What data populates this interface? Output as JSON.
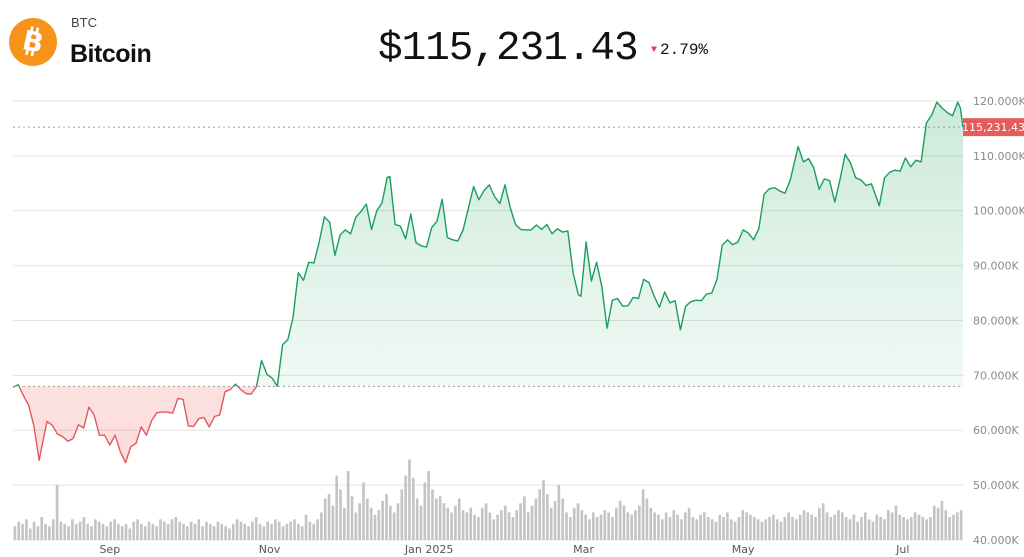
{
  "asset": {
    "ticker": "BTC",
    "name": "Bitcoin",
    "logo_icon": "bitcoin-icon",
    "logo_color": "#f7931a"
  },
  "quote": {
    "price": "$115,231.43",
    "change_direction": "down",
    "change_percent": "2.79%",
    "down_color": "#e0405a"
  },
  "colors": {
    "up_line": "#1a9e5c",
    "down_line": "#e05a5a",
    "up_fill": "#1a9e5c",
    "down_fill": "#f07070",
    "volume": "#c4c4c4",
    "grid": "#e3e3e3",
    "last_price_badge": "#e65c5c"
  },
  "chart_data": {
    "type": "area",
    "title": "",
    "xlabel": "",
    "ylabel": "",
    "ylim": [
      40000,
      122000
    ],
    "y_ticks": [
      {
        "value": 120000,
        "label": "120.000K"
      },
      {
        "value": 110000,
        "label": "110.000K"
      },
      {
        "value": 100000,
        "label": "100.000K"
      },
      {
        "value": 90000,
        "label": "90.000K"
      },
      {
        "value": 80000,
        "label": "80.000K"
      },
      {
        "value": 70000,
        "label": "70.000K"
      },
      {
        "value": 60000,
        "label": "60.000K"
      },
      {
        "value": 50000,
        "label": "50.000K"
      },
      {
        "value": 40000,
        "label": "40.000K"
      }
    ],
    "x_ticks": [
      {
        "date": "2024-09-01",
        "label": "Sep"
      },
      {
        "date": "2024-11-01",
        "label": "Nov"
      },
      {
        "date": "2025-01-01",
        "label": "Jan 2025"
      },
      {
        "date": "2025-03-01",
        "label": "Mar"
      },
      {
        "date": "2025-05-01",
        "label": "May"
      },
      {
        "date": "2025-07-01",
        "label": "Jul"
      }
    ],
    "x_range": [
      "2024-07-26",
      "2025-07-24"
    ],
    "baseline": 68000,
    "last_value": 115231.43,
    "last_value_label": "115,231.43",
    "grid": true,
    "series": [
      {
        "points": [
          [
            "2024-07-26",
            67800
          ],
          [
            "2024-07-28",
            68300
          ],
          [
            "2024-07-30",
            66300
          ],
          [
            "2024-08-01",
            64500
          ],
          [
            "2024-08-03",
            60800
          ],
          [
            "2024-08-05",
            54500
          ],
          [
            "2024-08-06",
            57000
          ],
          [
            "2024-08-08",
            61600
          ],
          [
            "2024-08-10",
            60900
          ],
          [
            "2024-08-12",
            59300
          ],
          [
            "2024-08-14",
            58800
          ],
          [
            "2024-08-16",
            58000
          ],
          [
            "2024-08-18",
            58500
          ],
          [
            "2024-08-20",
            61000
          ],
          [
            "2024-08-22",
            60400
          ],
          [
            "2024-08-24",
            64200
          ],
          [
            "2024-08-26",
            62800
          ],
          [
            "2024-08-28",
            59100
          ],
          [
            "2024-08-30",
            59100
          ],
          [
            "2024-09-01",
            57300
          ],
          [
            "2024-09-03",
            59100
          ],
          [
            "2024-09-05",
            56100
          ],
          [
            "2024-09-07",
            54100
          ],
          [
            "2024-09-09",
            57000
          ],
          [
            "2024-09-11",
            57600
          ],
          [
            "2024-09-13",
            60600
          ],
          [
            "2024-09-15",
            59100
          ],
          [
            "2024-09-17",
            61800
          ],
          [
            "2024-09-19",
            63200
          ],
          [
            "2024-09-21",
            63300
          ],
          [
            "2024-09-23",
            63300
          ],
          [
            "2024-09-25",
            63100
          ],
          [
            "2024-09-27",
            65800
          ],
          [
            "2024-09-29",
            65600
          ],
          [
            "2024-10-01",
            60800
          ],
          [
            "2024-10-03",
            60700
          ],
          [
            "2024-10-05",
            62100
          ],
          [
            "2024-10-07",
            62300
          ],
          [
            "2024-10-09",
            60600
          ],
          [
            "2024-10-11",
            62500
          ],
          [
            "2024-10-13",
            62800
          ],
          [
            "2024-10-15",
            67000
          ],
          [
            "2024-10-17",
            67400
          ],
          [
            "2024-10-19",
            68400
          ],
          [
            "2024-10-21",
            67400
          ],
          [
            "2024-10-23",
            66700
          ],
          [
            "2024-10-25",
            66600
          ],
          [
            "2024-10-27",
            67900
          ],
          [
            "2024-10-29",
            72700
          ],
          [
            "2024-10-31",
            70200
          ],
          [
            "2024-11-02",
            69500
          ],
          [
            "2024-11-04",
            68000
          ],
          [
            "2024-11-06",
            75600
          ],
          [
            "2024-11-08",
            76500
          ],
          [
            "2024-11-10",
            80500
          ],
          [
            "2024-11-12",
            88700
          ],
          [
            "2024-11-14",
            87300
          ],
          [
            "2024-11-16",
            90600
          ],
          [
            "2024-11-18",
            90500
          ],
          [
            "2024-11-20",
            94300
          ],
          [
            "2024-11-22",
            98900
          ],
          [
            "2024-11-24",
            97900
          ],
          [
            "2024-11-26",
            91900
          ],
          [
            "2024-11-28",
            95600
          ],
          [
            "2024-11-30",
            96500
          ],
          [
            "2024-12-02",
            95800
          ],
          [
            "2024-12-04",
            98800
          ],
          [
            "2024-12-06",
            99900
          ],
          [
            "2024-12-08",
            101200
          ],
          [
            "2024-12-10",
            96600
          ],
          [
            "2024-12-12",
            100000
          ],
          [
            "2024-12-14",
            101400
          ],
          [
            "2024-12-16",
            106100
          ],
          [
            "2024-12-17",
            106200
          ],
          [
            "2024-12-19",
            97500
          ],
          [
            "2024-12-21",
            97200
          ],
          [
            "2024-12-23",
            94900
          ],
          [
            "2024-12-25",
            99400
          ],
          [
            "2024-12-27",
            94200
          ],
          [
            "2024-12-29",
            93600
          ],
          [
            "2024-12-31",
            93400
          ],
          [
            "2025-01-02",
            96900
          ],
          [
            "2025-01-04",
            98100
          ],
          [
            "2025-01-06",
            102100
          ],
          [
            "2025-01-08",
            95100
          ],
          [
            "2025-01-10",
            94700
          ],
          [
            "2025-01-12",
            94500
          ],
          [
            "2025-01-14",
            96500
          ],
          [
            "2025-01-16",
            100500
          ],
          [
            "2025-01-18",
            104400
          ],
          [
            "2025-01-20",
            102000
          ],
          [
            "2025-01-22",
            103700
          ],
          [
            "2025-01-24",
            104700
          ],
          [
            "2025-01-26",
            102600
          ],
          [
            "2025-01-28",
            101300
          ],
          [
            "2025-01-30",
            104700
          ],
          [
            "2025-02-01",
            100600
          ],
          [
            "2025-02-03",
            97500
          ],
          [
            "2025-02-05",
            96600
          ],
          [
            "2025-02-07",
            96500
          ],
          [
            "2025-02-09",
            96500
          ],
          [
            "2025-02-11",
            97400
          ],
          [
            "2025-02-13",
            96600
          ],
          [
            "2025-02-15",
            97500
          ],
          [
            "2025-02-17",
            95800
          ],
          [
            "2025-02-19",
            96700
          ],
          [
            "2025-02-21",
            96100
          ],
          [
            "2025-02-23",
            96300
          ],
          [
            "2025-02-25",
            88700
          ],
          [
            "2025-02-27",
            84700
          ],
          [
            "2025-02-28",
            84400
          ],
          [
            "2025-03-02",
            94300
          ],
          [
            "2025-03-04",
            87200
          ],
          [
            "2025-03-06",
            90600
          ],
          [
            "2025-03-08",
            86200
          ],
          [
            "2025-03-10",
            78600
          ],
          [
            "2025-03-12",
            83700
          ],
          [
            "2025-03-14",
            84000
          ],
          [
            "2025-03-16",
            82600
          ],
          [
            "2025-03-18",
            82700
          ],
          [
            "2025-03-20",
            84200
          ],
          [
            "2025-03-22",
            84000
          ],
          [
            "2025-03-24",
            87500
          ],
          [
            "2025-03-26",
            86900
          ],
          [
            "2025-03-28",
            84400
          ],
          [
            "2025-03-30",
            82400
          ],
          [
            "2025-04-01",
            85200
          ],
          [
            "2025-04-03",
            83200
          ],
          [
            "2025-04-05",
            83600
          ],
          [
            "2025-04-07",
            78300
          ],
          [
            "2025-04-09",
            82600
          ],
          [
            "2025-04-11",
            83400
          ],
          [
            "2025-04-13",
            83700
          ],
          [
            "2025-04-15",
            83600
          ],
          [
            "2025-04-17",
            84800
          ],
          [
            "2025-04-19",
            85000
          ],
          [
            "2025-04-21",
            87500
          ],
          [
            "2025-04-23",
            93700
          ],
          [
            "2025-04-25",
            94700
          ],
          [
            "2025-04-27",
            93800
          ],
          [
            "2025-04-29",
            94300
          ],
          [
            "2025-05-01",
            96500
          ],
          [
            "2025-05-03",
            95900
          ],
          [
            "2025-05-05",
            94700
          ],
          [
            "2025-05-07",
            96800
          ],
          [
            "2025-05-09",
            103000
          ],
          [
            "2025-05-11",
            104000
          ],
          [
            "2025-05-13",
            104200
          ],
          [
            "2025-05-15",
            103600
          ],
          [
            "2025-05-17",
            103200
          ],
          [
            "2025-05-19",
            105600
          ],
          [
            "2025-05-21",
            109700
          ],
          [
            "2025-05-22",
            111700
          ],
          [
            "2025-05-24",
            108900
          ],
          [
            "2025-05-26",
            109500
          ],
          [
            "2025-05-28",
            107800
          ],
          [
            "2025-05-30",
            103900
          ],
          [
            "2025-06-01",
            105800
          ],
          [
            "2025-06-03",
            105500
          ],
          [
            "2025-06-05",
            101600
          ],
          [
            "2025-06-07",
            105700
          ],
          [
            "2025-06-09",
            110300
          ],
          [
            "2025-06-11",
            108700
          ],
          [
            "2025-06-13",
            106000
          ],
          [
            "2025-06-15",
            105600
          ],
          [
            "2025-06-17",
            104600
          ],
          [
            "2025-06-19",
            104900
          ],
          [
            "2025-06-21",
            102300
          ],
          [
            "2025-06-22",
            100900
          ],
          [
            "2025-06-24",
            106000
          ],
          [
            "2025-06-26",
            107000
          ],
          [
            "2025-06-28",
            107400
          ],
          [
            "2025-06-30",
            107200
          ],
          [
            "2025-07-02",
            109600
          ],
          [
            "2025-07-04",
            108000
          ],
          [
            "2025-07-06",
            109200
          ],
          [
            "2025-07-08",
            108900
          ],
          [
            "2025-07-10",
            116000
          ],
          [
            "2025-07-12",
            117400
          ],
          [
            "2025-07-14",
            119800
          ],
          [
            "2025-07-16",
            118700
          ],
          [
            "2025-07-18",
            117900
          ],
          [
            "2025-07-20",
            117300
          ],
          [
            "2025-07-22",
            119800
          ],
          [
            "2025-07-23",
            118700
          ],
          [
            "2025-07-24",
            115231
          ]
        ]
      }
    ],
    "volume": [
      6,
      8,
      7,
      9,
      5,
      8,
      6,
      10,
      7,
      6,
      9,
      24,
      8,
      7,
      6,
      9,
      7,
      8,
      10,
      7,
      6,
      9,
      8,
      7,
      6,
      8,
      9,
      7,
      6,
      7,
      5,
      8,
      9,
      7,
      6,
      8,
      7,
      6,
      9,
      8,
      7,
      9,
      10,
      8,
      7,
      6,
      8,
      7,
      9,
      6,
      8,
      7,
      6,
      8,
      7,
      6,
      5,
      7,
      9,
      8,
      7,
      6,
      8,
      10,
      7,
      6,
      8,
      7,
      9,
      8,
      6,
      7,
      8,
      9,
      7,
      6,
      11,
      8,
      7,
      9,
      12,
      18,
      20,
      15,
      28,
      22,
      14,
      30,
      19,
      12,
      16,
      25,
      18,
      14,
      11,
      13,
      17,
      20,
      15,
      12,
      16,
      22,
      28,
      35,
      27,
      18,
      15,
      25,
      30,
      22,
      18,
      19,
      16,
      14,
      12,
      15,
      18,
      13,
      12,
      14,
      11,
      10,
      14,
      16,
      12,
      9,
      11,
      13,
      15,
      12,
      10,
      13,
      16,
      19,
      12,
      15,
      18,
      22,
      26,
      20,
      14,
      17,
      24,
      18,
      12,
      10,
      14,
      16,
      13,
      11,
      9,
      12,
      10,
      11,
      13,
      12,
      10,
      14,
      17,
      15,
      12,
      11,
      13,
      15,
      22,
      18,
      14,
      12,
      11,
      9,
      12,
      10,
      13,
      11,
      9,
      12,
      14,
      10,
      9,
      11,
      12,
      10,
      9,
      8,
      11,
      10,
      12,
      9,
      8,
      10,
      13,
      12,
      11,
      10,
      9,
      8,
      9,
      10,
      11,
      9,
      8,
      10,
      12,
      10,
      9,
      11,
      13,
      12,
      11,
      10,
      14,
      16,
      12,
      10,
      11,
      13,
      12,
      10,
      9,
      11,
      8,
      10,
      12,
      9,
      8,
      11,
      10,
      9,
      13,
      12,
      15,
      11,
      10,
      9,
      10,
      12,
      11,
      10,
      9,
      10,
      15,
      14,
      17,
      13,
      10,
      11,
      12,
      13
    ]
  }
}
